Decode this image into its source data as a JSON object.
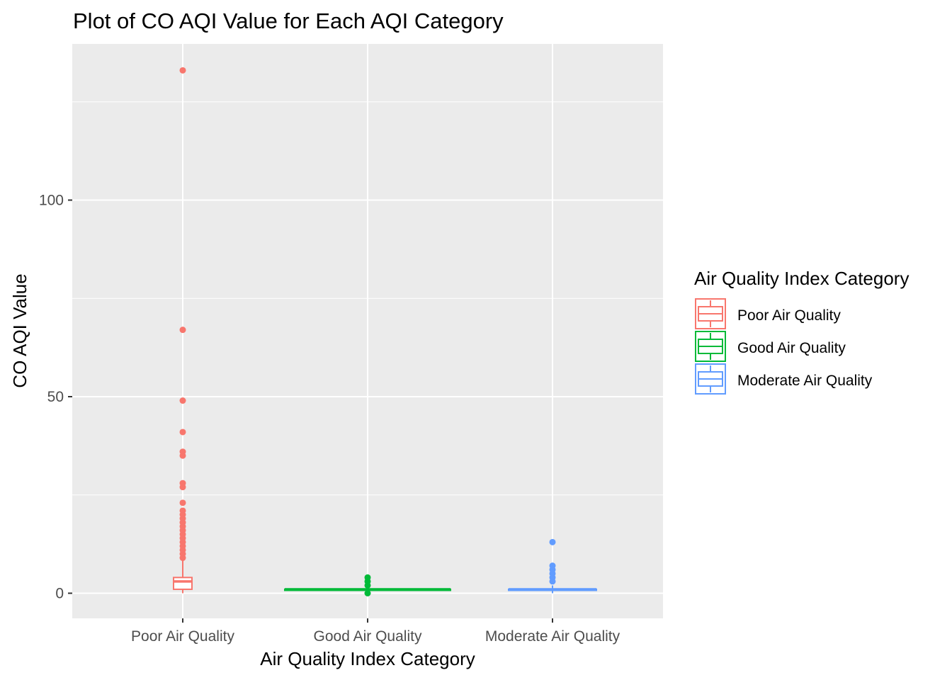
{
  "chart_data": {
    "type": "box",
    "title": "Plot of CO AQI Value for Each AQI Category",
    "xlabel": "Air Quality Index Category",
    "ylabel": "CO AQI Value",
    "ylim": [
      -6.5,
      139.5
    ],
    "y_ticks": [
      0,
      50,
      100
    ],
    "y_tick_labels": [
      "0",
      "50",
      "100"
    ],
    "categories": [
      "Poor Air Quality",
      "Good Air Quality",
      "Moderate Air Quality"
    ],
    "grid": true,
    "legend": {
      "title": "Air Quality Index Category",
      "position": "right",
      "entries": [
        "Poor Air Quality",
        "Good Air Quality",
        "Moderate Air Quality"
      ]
    },
    "colors": {
      "Poor Air Quality": "#F8766D",
      "Good Air Quality": "#00BA38",
      "Moderate Air Quality": "#619CFF",
      "panel": "#EBEBEB",
      "grid": "#FFFFFF"
    },
    "boxes": [
      {
        "category": "Poor Air Quality",
        "whisker_low": 0,
        "q1": 1,
        "median": 3,
        "q3": 4,
        "whisker_high": 8.5,
        "outliers": [
          9,
          10,
          11,
          12,
          13,
          14,
          15,
          16,
          17,
          18,
          19,
          20,
          21,
          23,
          27,
          28,
          35,
          36,
          41,
          49,
          67,
          133
        ]
      },
      {
        "category": "Good Air Quality",
        "whisker_low": 1,
        "q1": 1,
        "median": 1,
        "q3": 1,
        "whisker_high": 1,
        "outliers": [
          0,
          2,
          3,
          4
        ]
      },
      {
        "category": "Moderate Air Quality",
        "whisker_low": 0,
        "q1": 1,
        "median": 1,
        "q3": 1,
        "whisker_high": 2,
        "outliers": [
          3,
          4,
          5,
          6,
          7,
          13
        ]
      }
    ]
  }
}
